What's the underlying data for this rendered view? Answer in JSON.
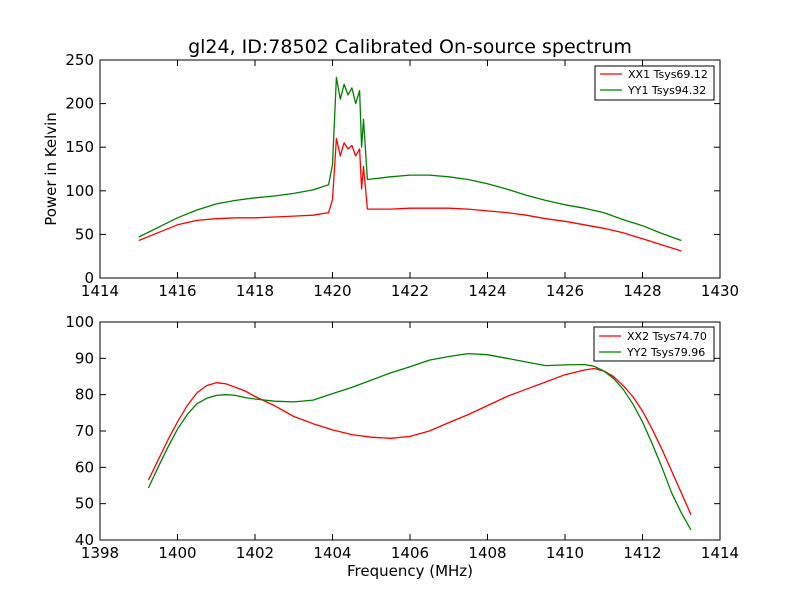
{
  "chart_data": [
    {
      "type": "line",
      "title": "gl24, ID:78502 Calibrated On-source spectrum",
      "xlabel": "",
      "ylabel": "Power in Kelvin",
      "xlim": [
        1414,
        1430
      ],
      "ylim": [
        0,
        250
      ],
      "xticks": [
        1414,
        1416,
        1418,
        1420,
        1422,
        1424,
        1426,
        1428,
        1430
      ],
      "yticks": [
        0,
        50,
        100,
        150,
        200,
        250
      ],
      "grid": false,
      "legend_position": "top-right",
      "series": [
        {
          "name": "XX1 Tsys69.12",
          "color": "#ff0000",
          "x": [
            1415.0,
            1415.5,
            1416.0,
            1416.5,
            1417.0,
            1417.5,
            1418.0,
            1418.5,
            1419.0,
            1419.5,
            1419.9,
            1420.0,
            1420.1,
            1420.2,
            1420.3,
            1420.4,
            1420.5,
            1420.6,
            1420.7,
            1420.75,
            1420.8,
            1420.9,
            1421.5,
            1422.0,
            1422.5,
            1423.0,
            1423.5,
            1424.0,
            1424.5,
            1425.0,
            1425.5,
            1426.0,
            1426.5,
            1427.0,
            1427.5,
            1428.0,
            1428.5,
            1429.0
          ],
          "values": [
            43,
            52,
            61,
            66,
            68,
            69,
            69,
            70,
            71,
            72,
            75,
            90,
            160,
            140,
            155,
            148,
            152,
            140,
            148,
            102,
            128,
            79,
            79,
            80,
            80,
            80,
            79,
            77,
            75,
            72,
            68,
            65,
            61,
            57,
            52,
            45,
            38,
            31
          ]
        },
        {
          "name": "YY1 Tsys94.32",
          "color": "#008000",
          "x": [
            1415.0,
            1415.5,
            1416.0,
            1416.5,
            1417.0,
            1417.5,
            1418.0,
            1418.5,
            1419.0,
            1419.5,
            1419.9,
            1420.0,
            1420.1,
            1420.2,
            1420.3,
            1420.4,
            1420.5,
            1420.6,
            1420.7,
            1420.75,
            1420.8,
            1420.9,
            1421.5,
            1422.0,
            1422.5,
            1423.0,
            1423.5,
            1424.0,
            1424.5,
            1425.0,
            1425.5,
            1426.0,
            1426.5,
            1427.0,
            1427.5,
            1428.0,
            1428.5,
            1429.0
          ],
          "values": [
            47,
            58,
            69,
            78,
            85,
            89,
            92,
            94,
            97,
            101,
            107,
            130,
            230,
            205,
            222,
            210,
            218,
            200,
            215,
            150,
            182,
            113,
            116,
            118,
            118,
            116,
            113,
            108,
            102,
            95,
            89,
            84,
            80,
            75,
            67,
            60,
            51,
            43
          ]
        }
      ]
    },
    {
      "type": "line",
      "title": "",
      "xlabel": "Frequency (MHz)",
      "ylabel": "",
      "xlim": [
        1398,
        1414
      ],
      "ylim": [
        40,
        100
      ],
      "xticks": [
        1398,
        1400,
        1402,
        1404,
        1406,
        1408,
        1410,
        1412,
        1414
      ],
      "yticks": [
        40,
        50,
        60,
        70,
        80,
        90,
        100
      ],
      "grid": false,
      "legend_position": "top-right",
      "series": [
        {
          "name": "XX2 Tsys74.70",
          "color": "#ff0000",
          "x": [
            1399.25,
            1399.5,
            1399.75,
            1400.0,
            1400.25,
            1400.5,
            1400.75,
            1401.0,
            1401.25,
            1401.5,
            1401.75,
            1402.0,
            1402.5,
            1403.0,
            1403.5,
            1404.0,
            1404.5,
            1405.0,
            1405.5,
            1406.0,
            1406.5,
            1407.0,
            1407.5,
            1408.0,
            1408.5,
            1409.0,
            1409.5,
            1410.0,
            1410.5,
            1410.75,
            1411.0,
            1411.25,
            1411.5,
            1411.75,
            1412.0,
            1412.25,
            1412.5,
            1412.75,
            1413.0,
            1413.25
          ],
          "values": [
            56.5,
            62,
            67.5,
            72.5,
            77,
            80.5,
            82.5,
            83.3,
            83,
            82,
            81,
            79.5,
            77,
            74,
            72,
            70.3,
            69,
            68.3,
            68,
            68.5,
            70,
            72.3,
            74.5,
            77,
            79.5,
            81.5,
            83.5,
            85.5,
            86.8,
            87.2,
            86.5,
            85,
            82.5,
            79.5,
            75.5,
            70.5,
            65,
            59,
            53,
            47
          ]
        },
        {
          "name": "YY2 Tsys79.96",
          "color": "#008000",
          "x": [
            1399.25,
            1399.5,
            1399.75,
            1400.0,
            1400.25,
            1400.5,
            1400.75,
            1401.0,
            1401.25,
            1401.5,
            1401.75,
            1402.0,
            1402.5,
            1403.0,
            1403.5,
            1404.0,
            1404.5,
            1405.0,
            1405.5,
            1406.0,
            1406.5,
            1407.0,
            1407.5,
            1408.0,
            1408.5,
            1409.0,
            1409.5,
            1410.0,
            1410.5,
            1410.75,
            1411.0,
            1411.25,
            1411.5,
            1411.75,
            1412.0,
            1412.25,
            1412.5,
            1412.75,
            1413.0,
            1413.25
          ],
          "values": [
            54.3,
            60,
            65.5,
            70.5,
            74.5,
            77.5,
            79,
            79.8,
            80,
            79.8,
            79.2,
            78.8,
            78.2,
            78,
            78.5,
            80.3,
            82,
            84,
            86,
            87.7,
            89.5,
            90.5,
            91.3,
            91,
            90,
            89,
            88,
            88.2,
            88.3,
            87.8,
            86.5,
            84.5,
            81.5,
            77.5,
            72.5,
            66.5,
            60,
            53,
            47.5,
            42.8
          ]
        }
      ]
    }
  ]
}
